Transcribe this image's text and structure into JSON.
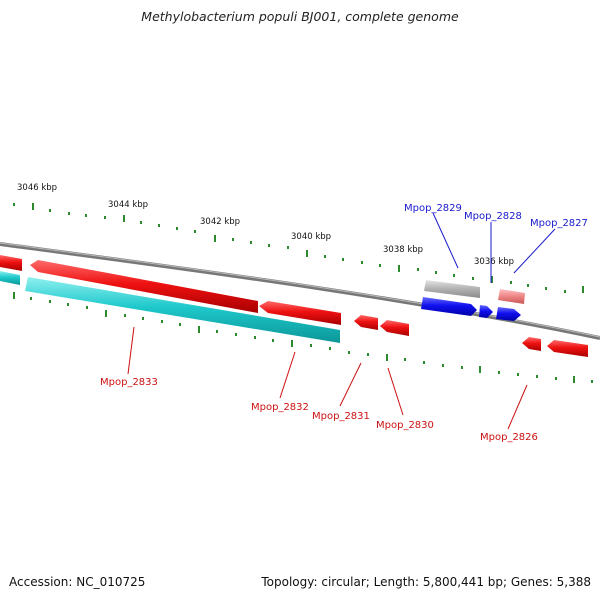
{
  "title": "Methylobacterium populi BJ001, complete genome",
  "footer": {
    "accession": "Accession: NC_010725",
    "stats": "Topology: circular; Length: 5,800,441 bp; Genes: 5,388"
  },
  "colors": {
    "forward_cds": "#ee1111",
    "reverse_cds": "#1fc9cc",
    "pseudogene": "#b0b0b0",
    "blue_cds": "#1010ee",
    "pink_cds": "#f08a8a",
    "backbone": "#888888",
    "ticks": "#2d8a2d",
    "label_red": "#cc1111",
    "label_blue": "#1a1acc"
  },
  "kbp_labels": [
    "3046 kbp",
    "3044 kbp",
    "3042 kbp",
    "3040 kbp",
    "3038 kbp",
    "3036 kbp"
  ],
  "gene_labels": [
    {
      "id": "Mpop_2829",
      "color": "blue"
    },
    {
      "id": "Mpop_2828",
      "color": "blue"
    },
    {
      "id": "Mpop_2827",
      "color": "blue"
    },
    {
      "id": "Mpop_2833",
      "color": "red"
    },
    {
      "id": "Mpop_2832",
      "color": "red"
    },
    {
      "id": "Mpop_2831",
      "color": "red"
    },
    {
      "id": "Mpop_2830",
      "color": "red"
    },
    {
      "id": "Mpop_2826",
      "color": "red"
    }
  ]
}
